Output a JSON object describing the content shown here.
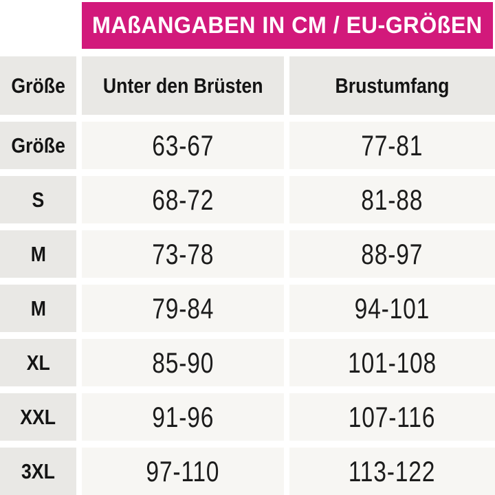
{
  "banner": {
    "title": "MAßANGABEN IN CM / EU-GRÖßEN",
    "background_color": "#D2197B",
    "text_color": "#FFFFFF"
  },
  "chart_data": {
    "type": "table",
    "title": "MAßANGABEN IN CM / EU-GRÖßEN",
    "columns": [
      "Größe",
      "Unter den Brüsten",
      "Brustumfang"
    ],
    "rows": [
      [
        "Größe",
        "63-67",
        "77-81"
      ],
      [
        "S",
        "68-72",
        "81-88"
      ],
      [
        "M",
        "73-78",
        "88-97"
      ],
      [
        "M",
        "79-84",
        "94-101"
      ],
      [
        "XL",
        "85-90",
        "101-108"
      ],
      [
        "XXL",
        "91-96",
        "107-116"
      ],
      [
        "3XL",
        "97-110",
        "113-122"
      ]
    ],
    "units": "cm",
    "layout": "header row + 7 data rows, 3 columns, white gutters between cells"
  },
  "colors": {
    "banner_magenta": "#D2197B",
    "header_cell_bg": "#E9E8E5",
    "data_cell_bg": "#F7F6F3",
    "text": "#141414",
    "page_bg": "#FFFFFF"
  }
}
